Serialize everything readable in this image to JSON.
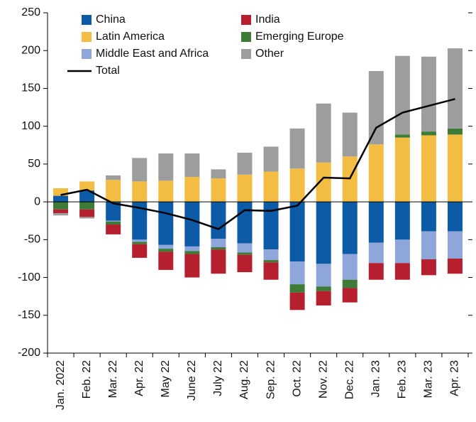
{
  "chart_data": {
    "type": "bar",
    "categories": [
      "Jan. 2022",
      "Feb. 22",
      "Mar. 22",
      "Apr. 22",
      "May 22",
      "June 22",
      "July 22",
      "Aug. 22",
      "Sep. 22",
      "Oct. 22",
      "Nov. 22",
      "Dec. 22",
      "Jan. 23",
      "Feb. 23",
      "Mar. 23",
      "Apr. 23"
    ],
    "series": [
      {
        "name": "China",
        "color": "#0d5aa7",
        "values": [
          8,
          15,
          -25,
          -50,
          -57,
          -59,
          -49,
          -55,
          -63,
          -79,
          -82,
          -69,
          -54,
          -50,
          -39,
          -39
        ]
      },
      {
        "name": "India",
        "color": "#b51f2e",
        "values": [
          -5,
          -10,
          -13,
          -18,
          -24,
          -31,
          -32,
          -23,
          -23,
          -23,
          -19,
          -19,
          -22,
          -22,
          -21,
          -20
        ]
      },
      {
        "name": "Latin America",
        "color": "#f2bd42",
        "values": [
          10,
          12,
          29,
          27,
          28,
          33,
          31,
          36,
          40,
          44,
          52,
          60,
          76,
          85,
          88,
          89
        ]
      },
      {
        "name": "Emerging Europe",
        "color": "#3d7b36",
        "values": [
          -10,
          -10,
          -4,
          -3,
          -4,
          -4,
          -3,
          -3,
          -3,
          -11,
          -6,
          -11,
          0,
          4,
          5,
          8
        ]
      },
      {
        "name": "Middle East and Africa",
        "color": "#8fa6da",
        "values": [
          0,
          0,
          -1,
          -3,
          -5,
          -6,
          -11,
          -12,
          -14,
          -30,
          -30,
          -34,
          -27,
          -31,
          -37,
          -36
        ]
      },
      {
        "name": "Other",
        "color": "#9d9d9d",
        "values": [
          -3,
          -2,
          6,
          31,
          36,
          31,
          12,
          29,
          33,
          53,
          78,
          58,
          97,
          104,
          99,
          106
        ]
      }
    ],
    "line": {
      "name": "Total",
      "color": "#000000",
      "values": [
        9,
        16,
        -2,
        -8,
        -15,
        -24,
        -36,
        -11,
        -12,
        -5,
        32,
        31,
        98,
        118,
        127,
        136
      ]
    },
    "ylim": [
      -200,
      250
    ],
    "yticks": [
      -200,
      -150,
      -100,
      -50,
      0,
      50,
      100,
      150,
      200,
      250
    ]
  }
}
